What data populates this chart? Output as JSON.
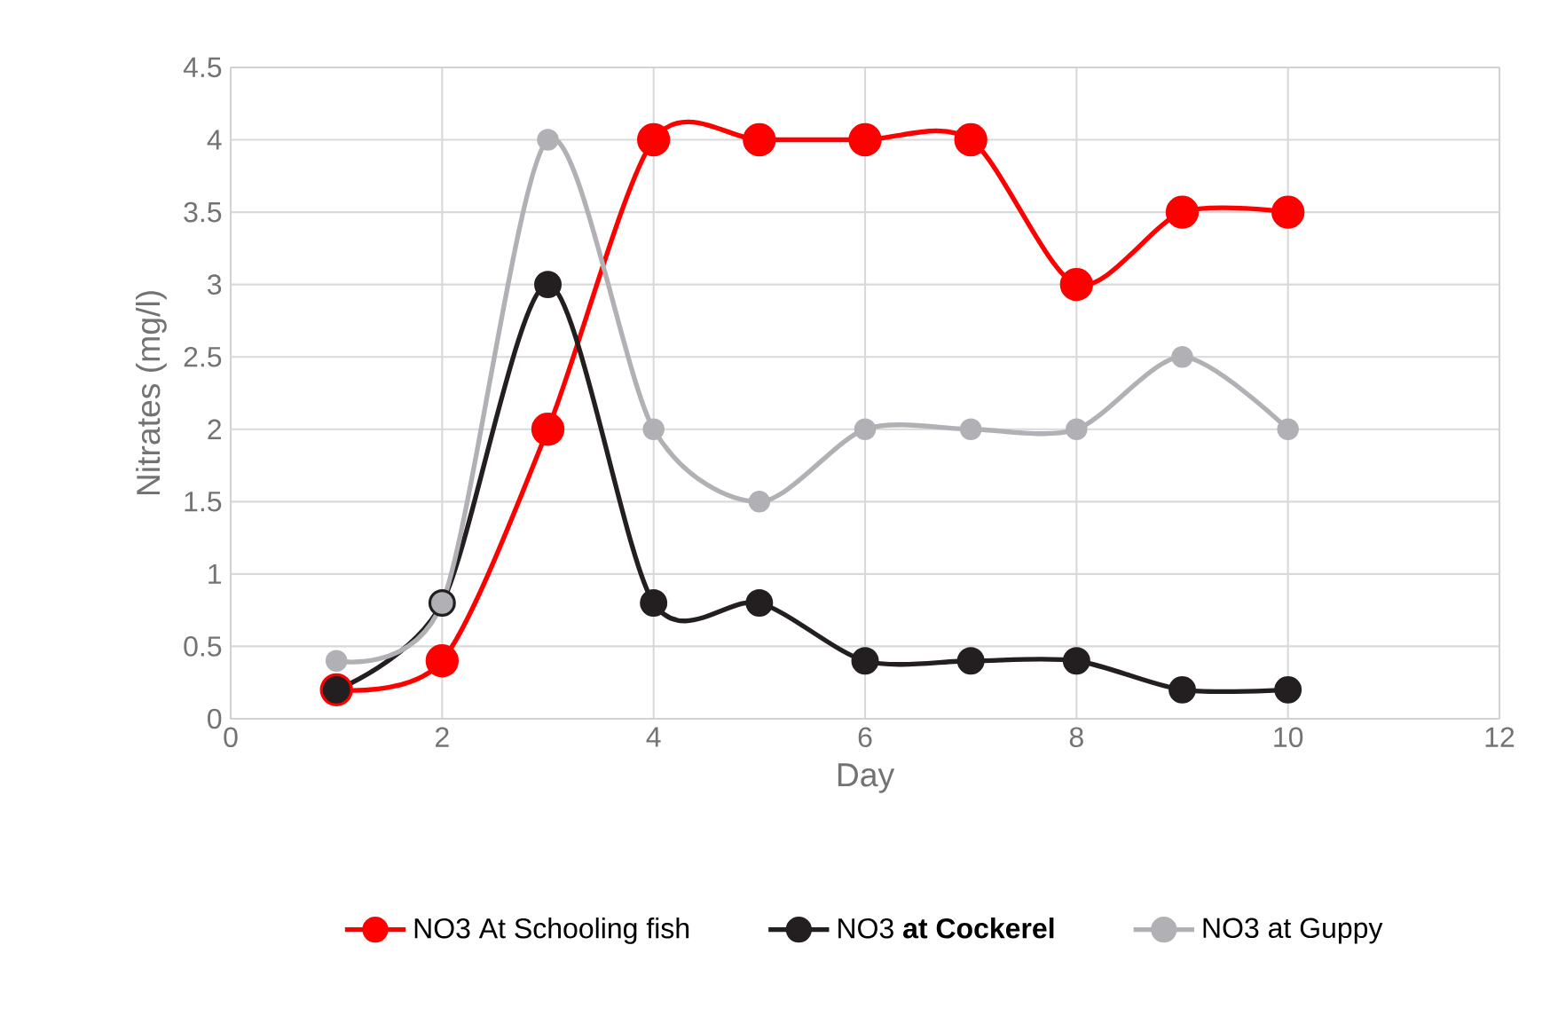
{
  "chart_data": {
    "type": "line",
    "xlabel": "Day",
    "ylabel": "Nitrates (mg/l)",
    "x": [
      1,
      2,
      3,
      4,
      5,
      6,
      7,
      8,
      9,
      10
    ],
    "series": [
      {
        "name": "NO3 At Schooling fish",
        "color": "#ff0000",
        "values": [
          0.2,
          0.4,
          2,
          4,
          4,
          4,
          4,
          3,
          3.5,
          3.5
        ]
      },
      {
        "name": "NO3 **at Cockerel**",
        "color": "#231f20",
        "values": [
          0.2,
          0.8,
          3,
          0.8,
          0.8,
          0.4,
          0.4,
          0.4,
          0.2,
          0.2
        ]
      },
      {
        "name": "NO3 at Guppy",
        "color": "#b1b1b5",
        "values": [
          0.4,
          0.8,
          4,
          2,
          1.5,
          2,
          2,
          2,
          2.5,
          2
        ]
      }
    ],
    "xlim": [
      0,
      12
    ],
    "xticks": [
      0,
      2,
      4,
      6,
      8,
      10,
      12
    ],
    "ylim": [
      0,
      4.5
    ],
    "yticks": [
      0,
      0.5,
      1,
      1.5,
      2,
      2.5,
      3,
      3.5,
      4,
      4.5
    ],
    "grid": true,
    "legend": "bottom",
    "marker": "circle",
    "line_style": "solid"
  }
}
